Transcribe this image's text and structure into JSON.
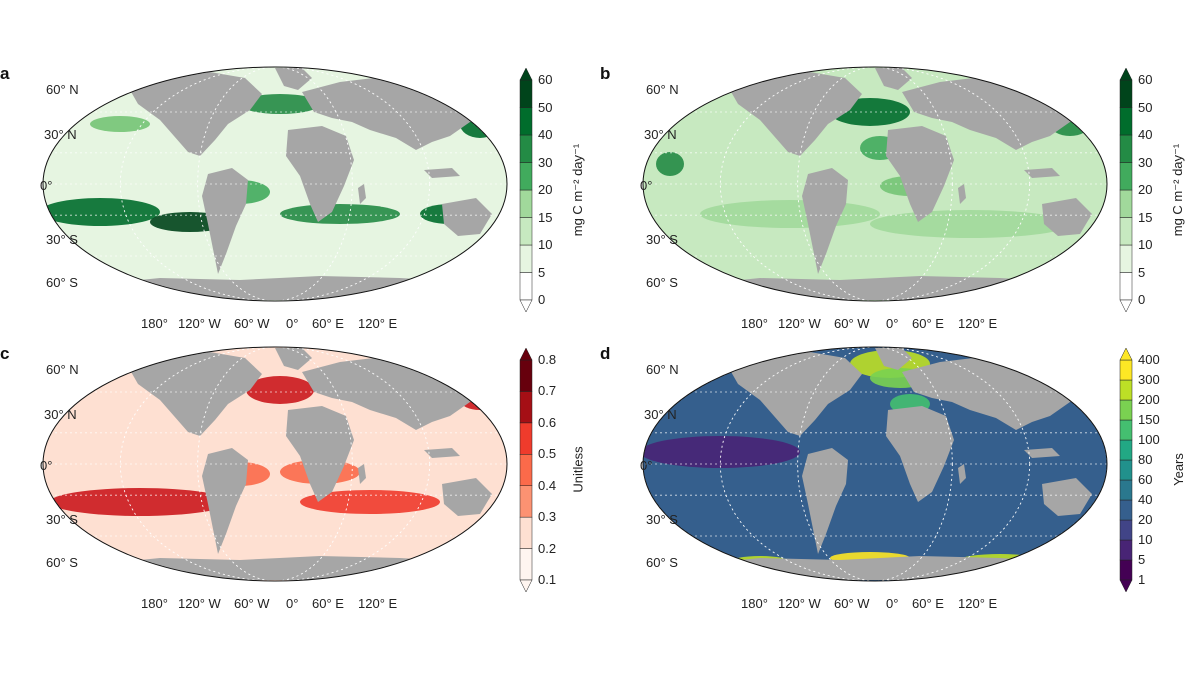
{
  "panels": [
    {
      "letter": "a",
      "palette": [
        "#ffffff",
        "#e6f5e1",
        "#c7e9c0",
        "#a1d99b",
        "#74c476",
        "#41ab5d",
        "#238b45",
        "#006d2c",
        "#00441b"
      ],
      "colorbar": {
        "ticks": [
          "0",
          "5",
          "10",
          "15",
          "20",
          "30",
          "40",
          "50",
          "60"
        ],
        "title": "mg C m⁻² day⁻¹",
        "extend": "both"
      },
      "lat_labels": [
        "60° N",
        "30° N",
        "0°",
        "30° S",
        "60° S"
      ],
      "lon_labels": [
        "180°",
        "120° W",
        "60° W",
        "0°",
        "60° E",
        "120° E"
      ]
    },
    {
      "letter": "b",
      "palette": [
        "#ffffff",
        "#e6f5e1",
        "#c7e9c0",
        "#a1d99b",
        "#74c476",
        "#41ab5d",
        "#238b45",
        "#006d2c",
        "#00441b"
      ],
      "colorbar": {
        "ticks": [
          "0",
          "5",
          "10",
          "15",
          "20",
          "30",
          "40",
          "50",
          "60"
        ],
        "title": "mg C m⁻² day⁻¹",
        "extend": "both"
      },
      "lat_labels": [
        "60° N",
        "30° N",
        "0°",
        "30° S",
        "60° S"
      ],
      "lon_labels": [
        "180°",
        "120° W",
        "60° W",
        "0°",
        "60° E",
        "120° E"
      ]
    },
    {
      "letter": "c",
      "palette": [
        "#fff5f0",
        "#fee0d2",
        "#fcbba1",
        "#fc9272",
        "#fb6a4a",
        "#ef3b2c",
        "#cb181d",
        "#a50f15",
        "#67000d"
      ],
      "colorbar": {
        "ticks": [
          "0.1",
          "0.2",
          "0.3",
          "0.4",
          "0.5",
          "0.6",
          "0.7",
          "0.8"
        ],
        "title": "Unitless",
        "extend": "both"
      },
      "lat_labels": [
        "60° N",
        "30° N",
        "0°",
        "30° S",
        "60° S"
      ],
      "lon_labels": [
        "180°",
        "120° W",
        "60° W",
        "0°",
        "60° E",
        "120° E"
      ]
    },
    {
      "letter": "d",
      "palette": [
        "#440154",
        "#482475",
        "#414487",
        "#355f8d",
        "#2a788e",
        "#21918c",
        "#22a884",
        "#44bf70",
        "#7ad151",
        "#bddf26",
        "#fde725"
      ],
      "colorbar": {
        "ticks": [
          "1",
          "5",
          "10",
          "20",
          "40",
          "60",
          "80",
          "100",
          "150",
          "200",
          "300",
          "400"
        ],
        "title": "Years",
        "extend": "both"
      },
      "lat_labels": [
        "60° N",
        "30° N",
        "0°",
        "30° S",
        "60° S"
      ],
      "lon_labels": [
        "180°",
        "120° W",
        "60° W",
        "0°",
        "60° E",
        "120° E"
      ]
    }
  ],
  "land_color": "#a6a6a6",
  "grid_color": "#ffffff"
}
